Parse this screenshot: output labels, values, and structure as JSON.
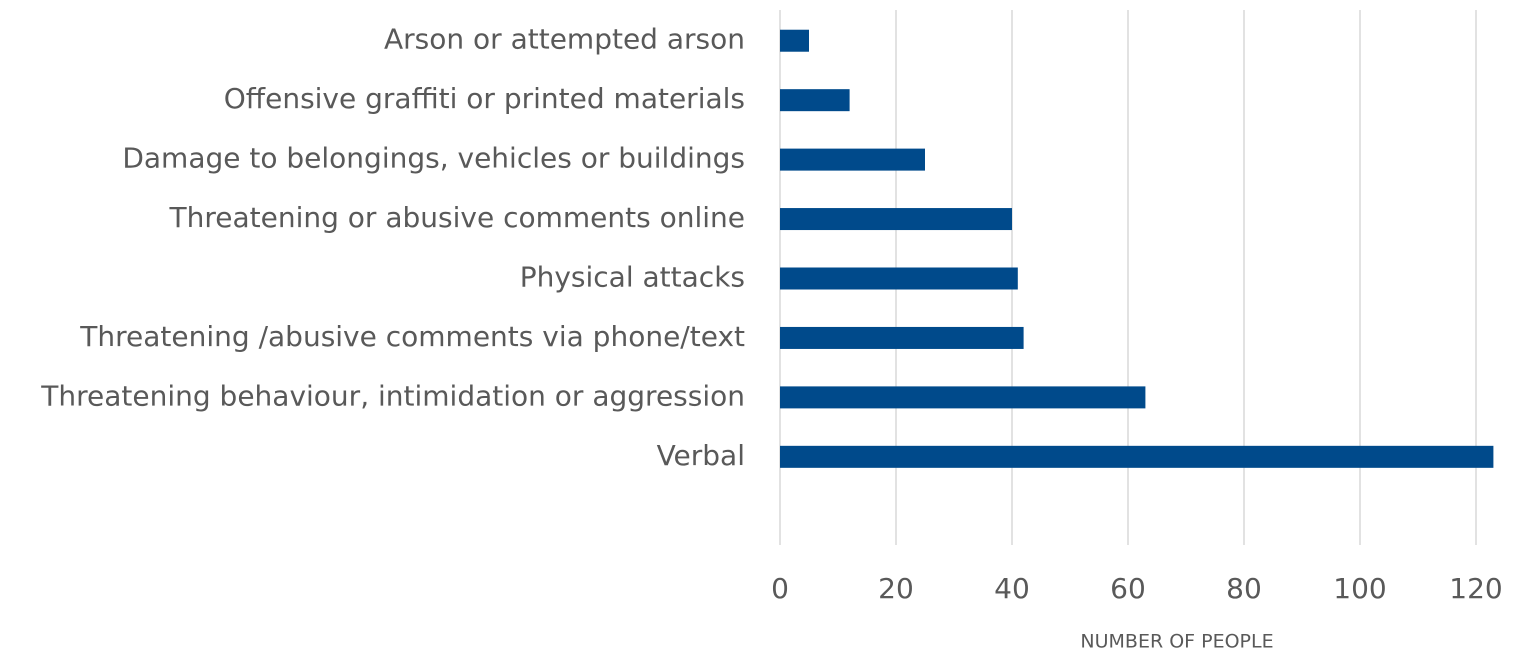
{
  "chart_data": {
    "type": "bar",
    "orientation": "horizontal",
    "categories": [
      "Arson or attempted arson",
      "Offensive graffiti or printed materials",
      "Damage to belongings, vehicles or buildings",
      "Threatening or abusive comments online",
      "Physical attacks",
      "Threatening /abusive comments via phone/text",
      "Threatening behaviour, intimidation or aggression",
      "Verbal"
    ],
    "values": [
      5,
      12,
      25,
      40,
      41,
      42,
      63,
      123
    ],
    "color": "#004a8b",
    "x_label": "NUMBER OF PEOPLE",
    "xlim": [
      0,
      120
    ],
    "xticks": [
      0,
      20,
      40,
      60,
      80,
      100,
      120
    ],
    "grid": true
  }
}
